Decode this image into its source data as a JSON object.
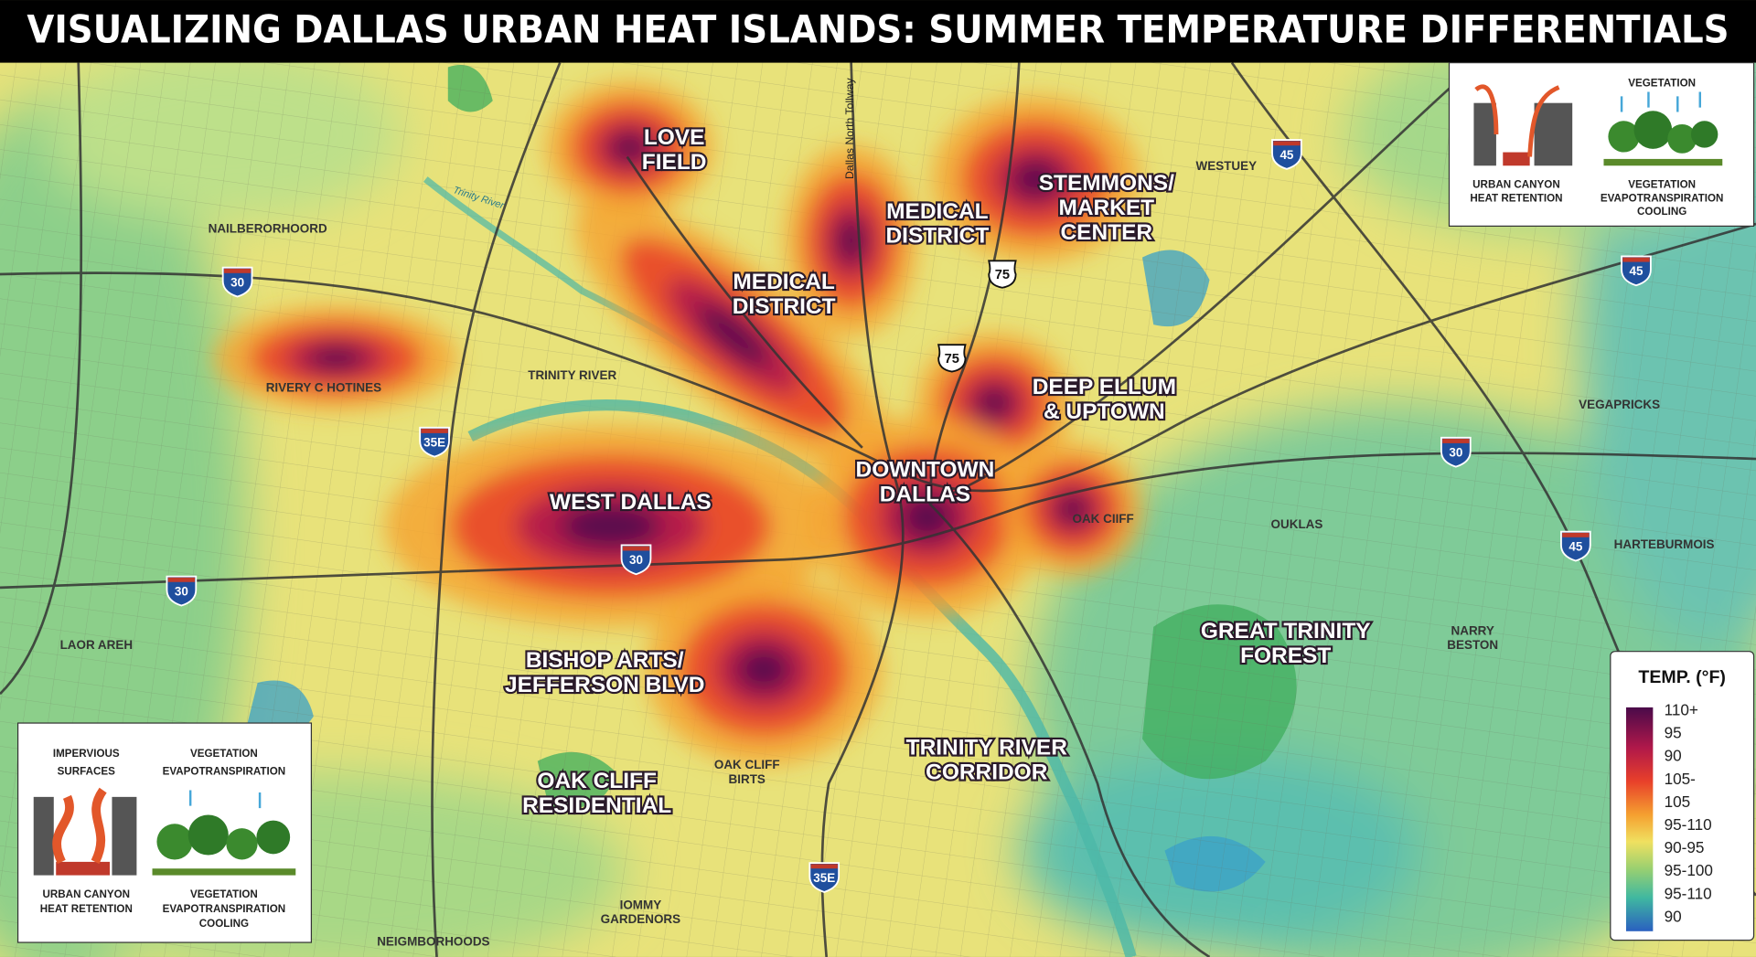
{
  "title": "VISUALIZING DALLAS URBAN HEAT ISLANDS: SUMMER TEMPERATURE DIFFERENTIALS",
  "districts": [
    {
      "lines": [
        "LOVE",
        "FIELD"
      ]
    },
    {
      "lines": [
        "MEDICAL",
        "DISTRICT"
      ]
    },
    {
      "lines": [
        "STEMMONS/",
        "MARKET",
        "CENTER"
      ]
    },
    {
      "lines": [
        "MEDICAL",
        "DISTRICT"
      ]
    },
    {
      "lines": [
        "DEEP ELLUM",
        "& UPTOWN"
      ]
    },
    {
      "lines": [
        "DOWNTOWN",
        "DALLAS"
      ]
    },
    {
      "lines": [
        "WEST DALLAS"
      ]
    },
    {
      "lines": [
        "BISHOP ARTS/",
        "JEFFERSON BLVD"
      ]
    },
    {
      "lines": [
        "OAK CLIFF",
        "RESIDENTIAL"
      ]
    },
    {
      "lines": [
        "GREAT TRINITY",
        "FOREST"
      ]
    },
    {
      "lines": [
        "TRINITY RIVER",
        "CORRIDOR"
      ]
    }
  ],
  "places": [
    {
      "lines": [
        "WESTUEY"
      ]
    },
    {
      "lines": [
        "NAILBERORHOORD"
      ]
    },
    {
      "lines": [
        "RIVERY C HOTINES"
      ]
    },
    {
      "lines": [
        "TRINITY RIVER"
      ]
    },
    {
      "lines": [
        "VEGAPRICKS"
      ]
    },
    {
      "lines": [
        "OAK CIIFF"
      ]
    },
    {
      "lines": [
        "OUKLAS"
      ]
    },
    {
      "lines": [
        "HARTEBURMOIS"
      ]
    },
    {
      "lines": [
        "LAOR AREH"
      ]
    },
    {
      "lines": [
        "NARRY",
        "BESTON"
      ]
    },
    {
      "lines": [
        "OAK CLIFF",
        "BIRTS"
      ]
    },
    {
      "lines": [
        "IOMMY",
        "GARDENORS"
      ]
    },
    {
      "lines": [
        "NEIGMBORHOODS"
      ]
    }
  ],
  "road_names": [
    "Dallas North Tollway",
    "Trinity River"
  ],
  "interstates": [
    "30",
    "35E",
    "30",
    "30",
    "45",
    "45",
    "30",
    "45",
    "35E"
  ],
  "us_highways": [
    "75",
    "75"
  ],
  "legend": {
    "title": "TEMP. (°F)",
    "labels": [
      "110+",
      "95",
      "90",
      "105-",
      "105",
      "95-110",
      "90-95",
      "95-100",
      "95-110",
      "90"
    ]
  },
  "inset_top": {
    "heading": "VEGETATION",
    "left": [
      "URBAN CANYON",
      "HEAT RETENTION"
    ],
    "right": [
      "VEGETATION",
      "EVAPOTRANSPIRATION",
      "COOLING"
    ]
  },
  "inset_bottom": {
    "heading_left": [
      "IMPERVIOUS",
      "SURFACES"
    ],
    "heading_right": [
      "VEGETATION",
      "EVAPOTRANSPIRATION"
    ],
    "left": [
      "URBAN CANYON",
      "HEAT RETENTION"
    ],
    "right": [
      "VEGETATION",
      "EVAPOTRANSPIRATION",
      "COOLING"
    ]
  }
}
